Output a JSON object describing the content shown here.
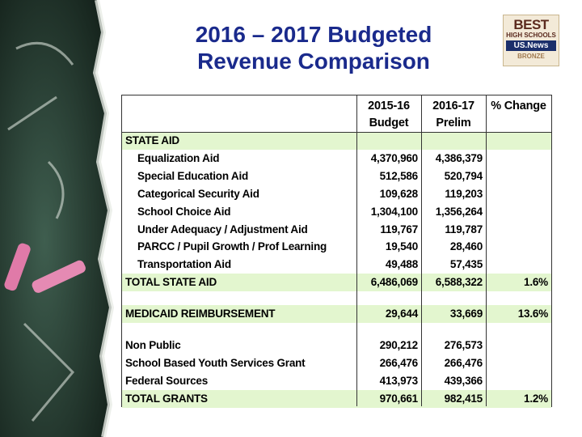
{
  "header": {
    "title_lines": [
      "2016 – 2017 Budgeted",
      "Revenue Comparison"
    ]
  },
  "badge": {
    "lines": [
      "BEST",
      "HIGH SCHOOLS",
      "US.News",
      "BRONZE"
    ]
  },
  "table": {
    "columns": [
      [
        "2015-16",
        "Budget"
      ],
      [
        "2016-17",
        "Prelim"
      ],
      [
        "% Change"
      ]
    ],
    "sections": [
      {
        "rows": [
          {
            "label": "STATE AID",
            "indent": false,
            "highlight": true,
            "cells": [
              null,
              null,
              null
            ]
          },
          {
            "label": "Equalization Aid",
            "indent": true,
            "highlight": false,
            "cells": [
              "4,370,960",
              "4,386,379",
              null
            ]
          },
          {
            "label": "Special Education Aid",
            "indent": true,
            "highlight": false,
            "cells": [
              "512,586",
              "520,794",
              null
            ]
          },
          {
            "label": "Categorical Security Aid",
            "indent": true,
            "highlight": false,
            "cells": [
              "109,628",
              "119,203",
              null
            ]
          },
          {
            "label": "School Choice Aid",
            "indent": true,
            "highlight": false,
            "cells": [
              "1,304,100",
              "1,356,264",
              null
            ]
          },
          {
            "label": "Under Adequacy / Adjustment Aid",
            "indent": true,
            "highlight": false,
            "cells": [
              "119,767",
              "119,787",
              null
            ]
          },
          {
            "label": "PARCC / Pupil Growth / Prof Learning",
            "indent": true,
            "highlight": false,
            "cells": [
              "19,540",
              "28,460",
              null
            ]
          },
          {
            "label": "Transportation Aid",
            "indent": true,
            "highlight": false,
            "cells": [
              "49,488",
              "57,435",
              null
            ]
          },
          {
            "label": "TOTAL STATE AID",
            "indent": false,
            "highlight": true,
            "cells": [
              "6,486,069",
              "6,588,322",
              "1.6%"
            ]
          }
        ]
      },
      {
        "rows": [
          {
            "label": "MEDICAID REIMBURSEMENT",
            "indent": false,
            "highlight": true,
            "cells": [
              "29,644",
              "33,669",
              "13.6%"
            ]
          }
        ]
      },
      {
        "rows": [
          {
            "label": "Non Public",
            "indent": false,
            "highlight": false,
            "cells": [
              "290,212",
              "276,573",
              null
            ]
          },
          {
            "label": "School Based Youth Services Grant",
            "indent": false,
            "highlight": false,
            "cells": [
              "266,476",
              "266,476",
              null
            ]
          },
          {
            "label": "Federal Sources",
            "indent": false,
            "highlight": false,
            "cells": [
              "413,973",
              "439,366",
              null
            ]
          },
          {
            "label": "TOTAL GRANTS",
            "indent": false,
            "highlight": true,
            "cells": [
              "970,661",
              "982,415",
              "1.2%"
            ]
          }
        ]
      }
    ]
  }
}
